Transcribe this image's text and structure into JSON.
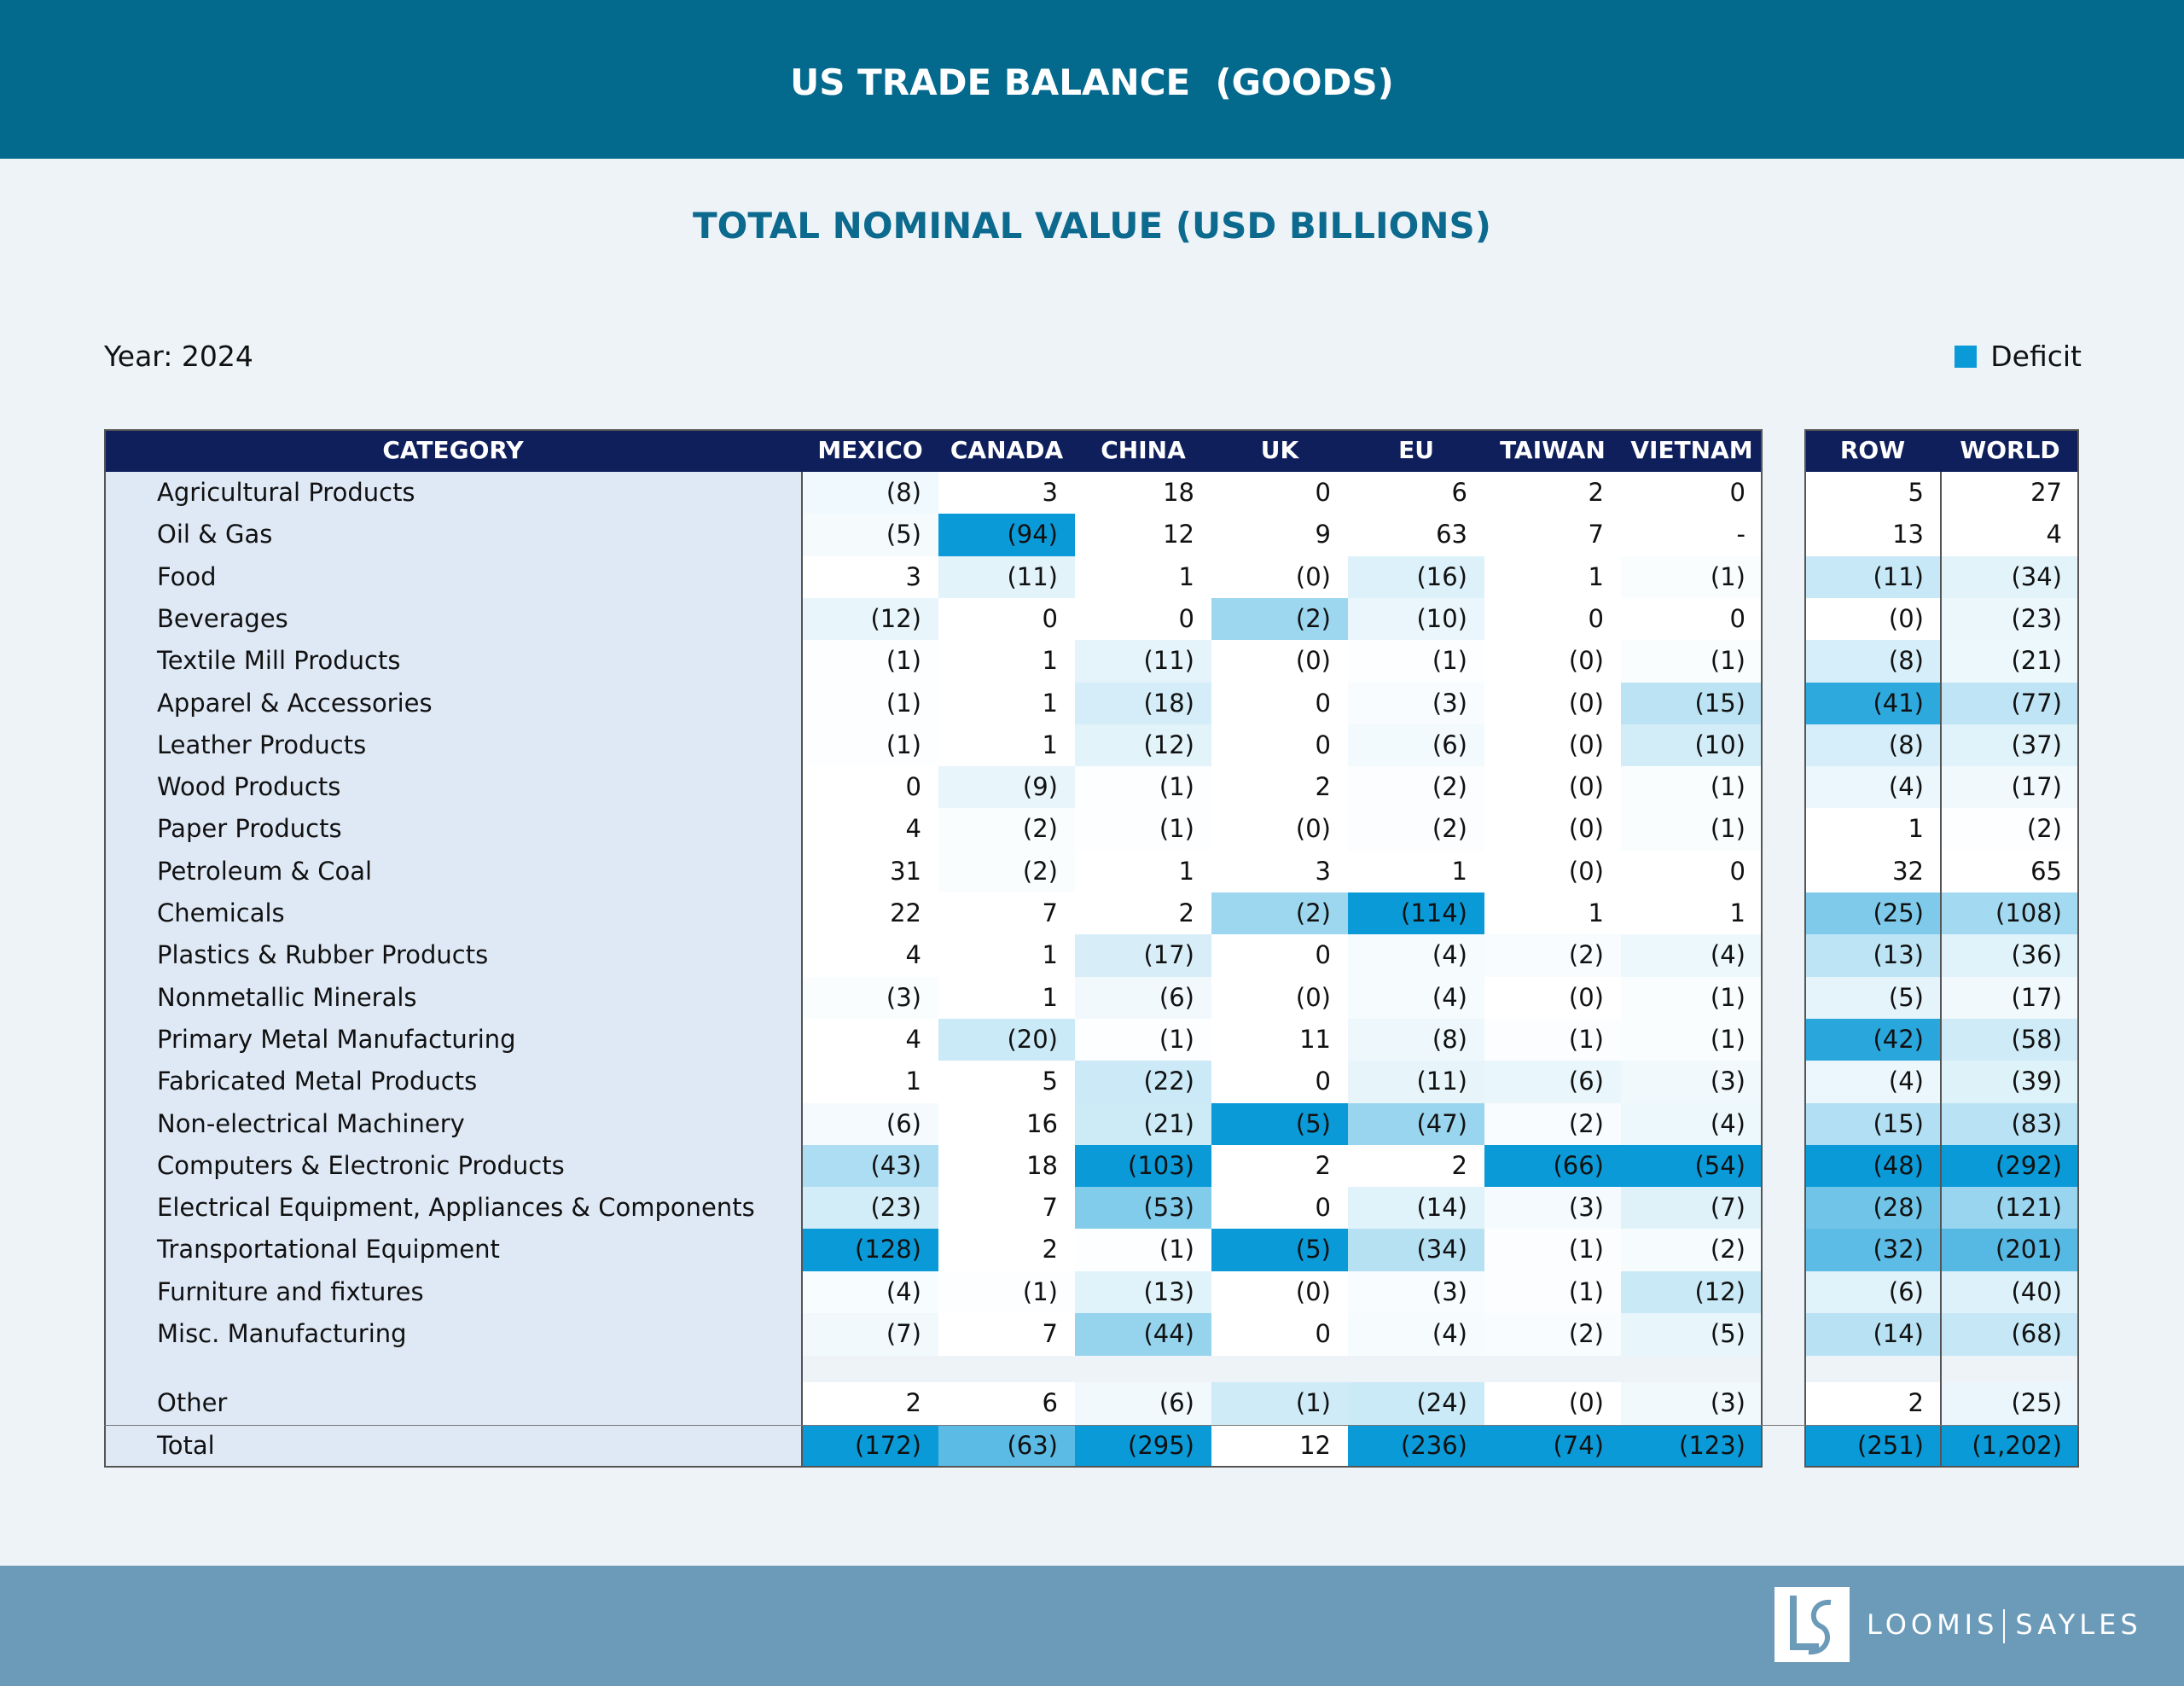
{
  "header": {
    "title": "US TRADE BALANCE  (GOODS)",
    "subtitle": "TOTAL NOMINAL VALUE (USD BILLIONS)"
  },
  "year_label": "Year: 2024",
  "legend": "Deficit",
  "table": {
    "columns": [
      "CATEGORY",
      "MEXICO",
      "CANADA",
      "CHINA",
      "UK",
      "EU",
      "TAIWAN",
      "VIETNAM",
      "ROW",
      "WORLD"
    ],
    "rows": [
      [
        "Agricultural Products",
        "(8)",
        "3",
        "18",
        "0",
        "6",
        "2",
        "0",
        "5",
        "27"
      ],
      [
        "Oil & Gas",
        "(5)",
        "(94)",
        "12",
        "9",
        "63",
        "7",
        "-",
        "13",
        "4"
      ],
      [
        "Food",
        "3",
        "(11)",
        "1",
        "(0)",
        "(16)",
        "1",
        "(1)",
        "(11)",
        "(34)"
      ],
      [
        "Beverages",
        "(12)",
        "0",
        "0",
        "(2)",
        "(10)",
        "0",
        "0",
        "(0)",
        "(23)"
      ],
      [
        "Textile Mill Products",
        "(1)",
        "1",
        "(11)",
        "(0)",
        "(1)",
        "(0)",
        "(1)",
        "(8)",
        "(21)"
      ],
      [
        "Apparel & Accessories",
        "(1)",
        "1",
        "(18)",
        "0",
        "(3)",
        "(0)",
        "(15)",
        "(41)",
        "(77)"
      ],
      [
        "Leather Products",
        "(1)",
        "1",
        "(12)",
        "0",
        "(6)",
        "(0)",
        "(10)",
        "(8)",
        "(37)"
      ],
      [
        "Wood Products",
        "0",
        "(9)",
        "(1)",
        "2",
        "(2)",
        "(0)",
        "(1)",
        "(4)",
        "(17)"
      ],
      [
        "Paper Products",
        "4",
        "(2)",
        "(1)",
        "(0)",
        "(2)",
        "(0)",
        "(1)",
        "1",
        "(2)"
      ],
      [
        "Petroleum & Coal",
        "31",
        "(2)",
        "1",
        "3",
        "1",
        "(0)",
        "0",
        "32",
        "65"
      ],
      [
        "Chemicals",
        "22",
        "7",
        "2",
        "(2)",
        "(114)",
        "1",
        "1",
        "(25)",
        "(108)"
      ],
      [
        "Plastics & Rubber Products",
        "4",
        "1",
        "(17)",
        "0",
        "(4)",
        "(2)",
        "(4)",
        "(13)",
        "(36)"
      ],
      [
        "Nonmetallic Minerals",
        "(3)",
        "1",
        "(6)",
        "(0)",
        "(4)",
        "(0)",
        "(1)",
        "(5)",
        "(17)"
      ],
      [
        "Primary Metal Manufacturing",
        "4",
        "(20)",
        "(1)",
        "11",
        "(8)",
        "(1)",
        "(1)",
        "(42)",
        "(58)"
      ],
      [
        "Fabricated Metal Products",
        "1",
        "5",
        "(22)",
        "0",
        "(11)",
        "(6)",
        "(3)",
        "(4)",
        "(39)"
      ],
      [
        "Non-electrical Machinery",
        "(6)",
        "16",
        "(21)",
        "(5)",
        "(47)",
        "(2)",
        "(4)",
        "(15)",
        "(83)"
      ],
      [
        "Computers & Electronic Products",
        "(43)",
        "18",
        "(103)",
        "2",
        "2",
        "(66)",
        "(54)",
        "(48)",
        "(292)"
      ],
      [
        "Electrical Equipment, Appliances & Components",
        "(23)",
        "7",
        "(53)",
        "0",
        "(14)",
        "(3)",
        "(7)",
        "(28)",
        "(121)"
      ],
      [
        "Transportational Equipment",
        "(128)",
        "2",
        "(1)",
        "(5)",
        "(34)",
        "(1)",
        "(2)",
        "(32)",
        "(201)"
      ],
      [
        "Furniture and fixtures",
        "(4)",
        "(1)",
        "(13)",
        "(0)",
        "(3)",
        "(1)",
        "(12)",
        "(6)",
        "(40)"
      ],
      [
        "Misc. Manufacturing",
        "(7)",
        "7",
        "(44)",
        "0",
        "(4)",
        "(2)",
        "(5)",
        "(14)",
        "(68)"
      ]
    ],
    "other_rows": [
      [
        "Other",
        "2",
        "6",
        "(6)",
        "(1)",
        "(24)",
        "(0)",
        "(3)",
        "2",
        "(25)"
      ],
      [
        "Total",
        "(172)",
        "(63)",
        "(295)",
        "12",
        "(236)",
        "(74)",
        "(123)",
        "(251)",
        "(1,202)"
      ]
    ]
  },
  "footer": {
    "brand_left": "LOOMIS",
    "brand_right": "SAYLES"
  }
}
